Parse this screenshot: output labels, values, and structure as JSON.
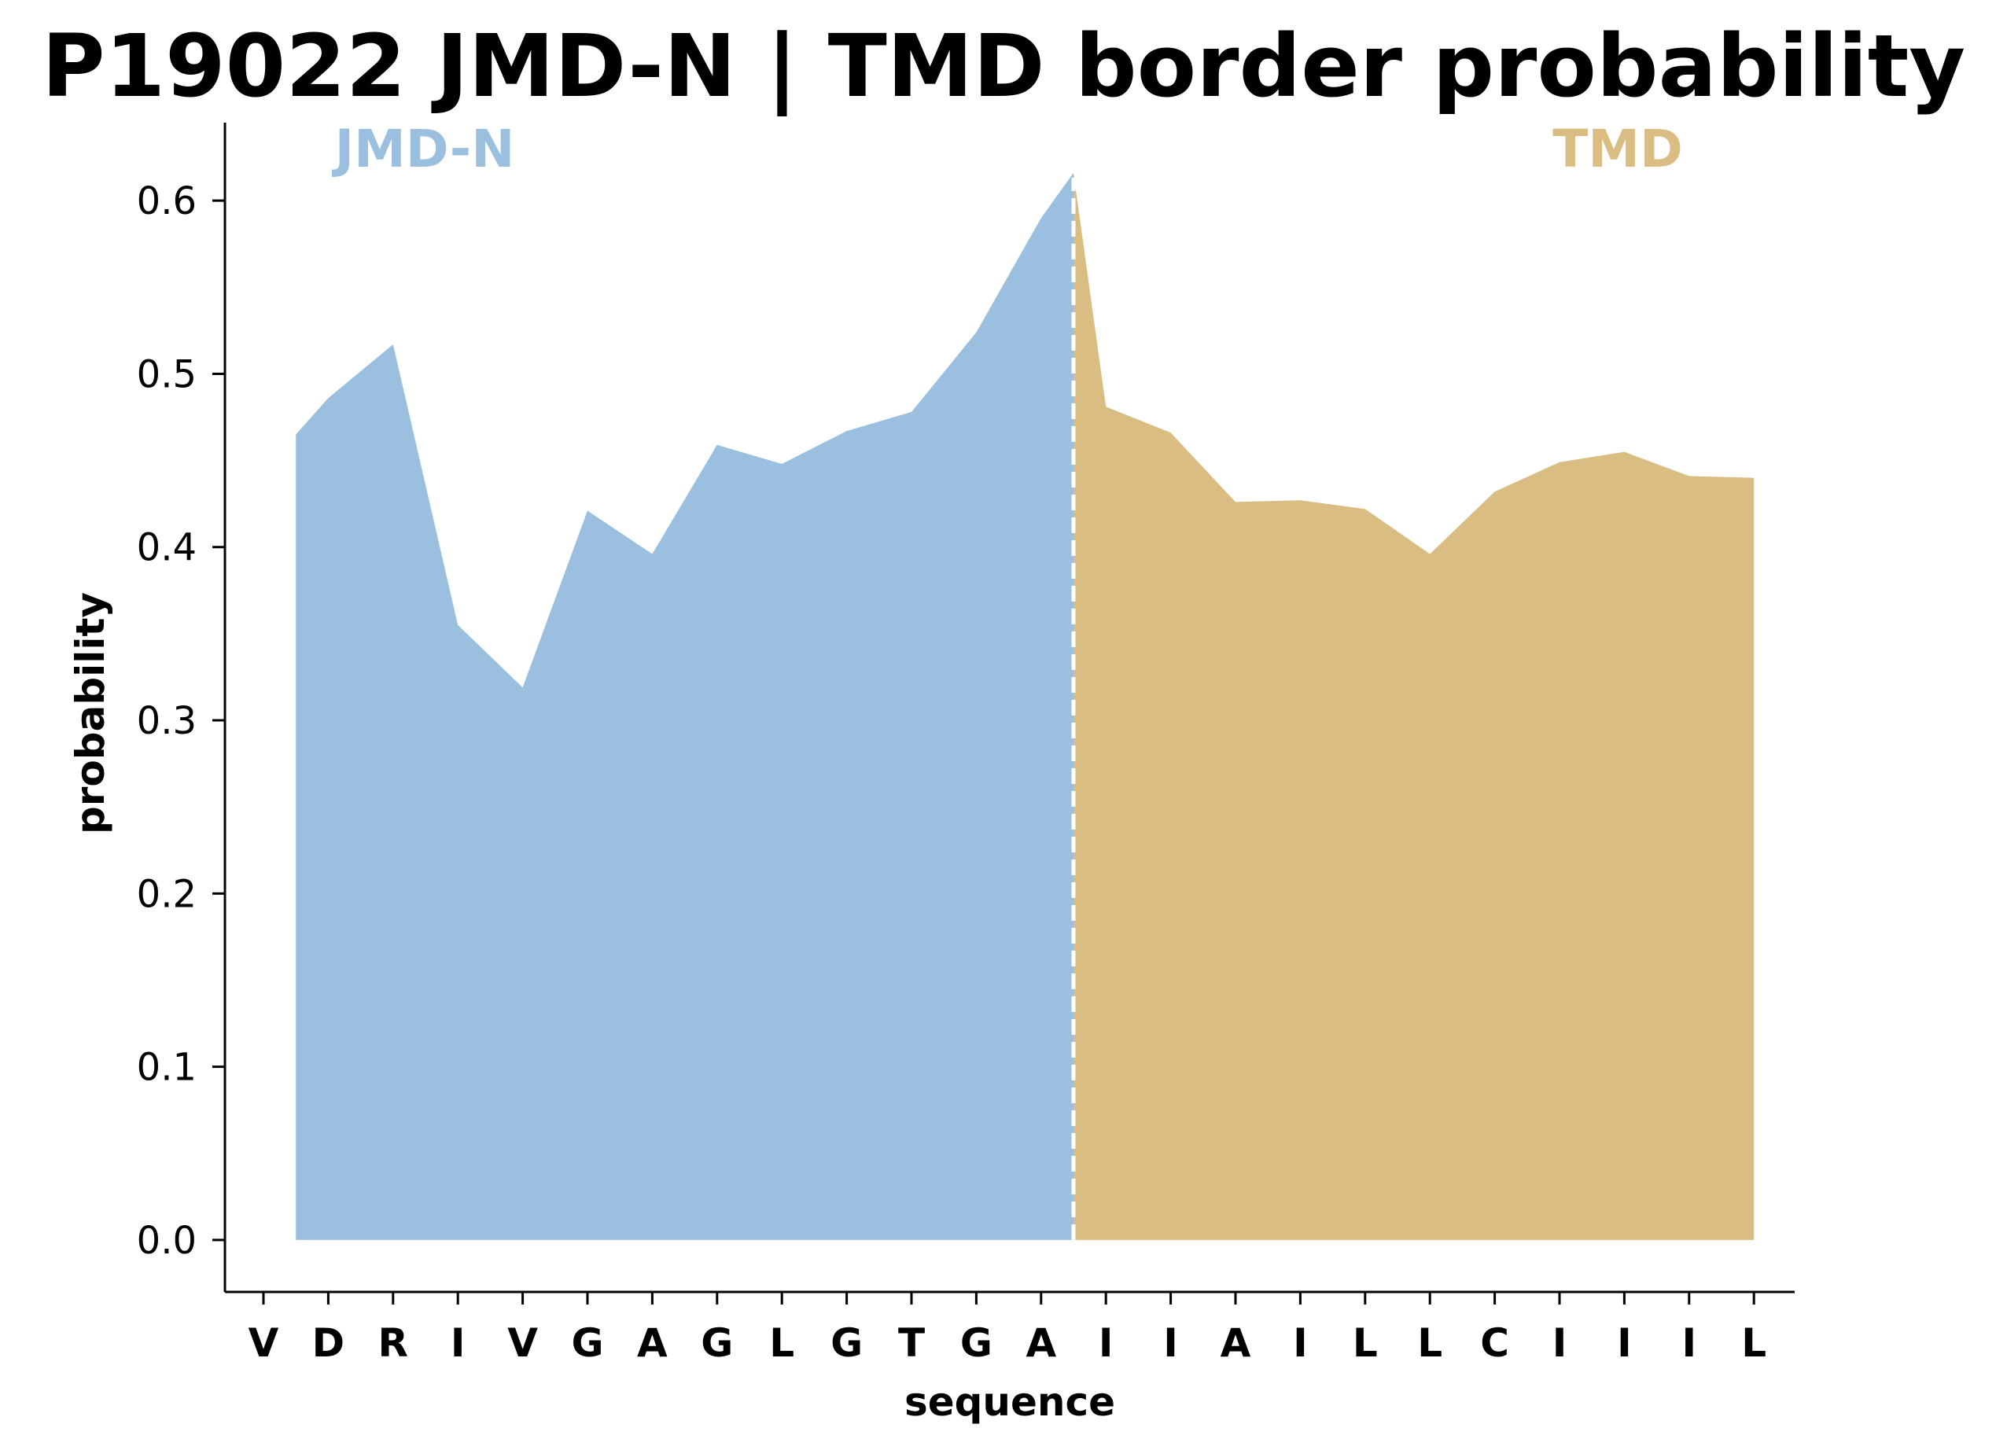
{
  "chart_data": {
    "type": "area",
    "title": "P19022 JMD-N | TMD border probability",
    "xlabel": "sequence",
    "ylabel": "probability",
    "ylim": [
      -0.03,
      0.645
    ],
    "yticks": [
      0.0,
      0.1,
      0.2,
      0.3,
      0.4,
      0.5,
      0.6
    ],
    "ytick_labels": [
      "0.0",
      "0.1",
      "0.2",
      "0.3",
      "0.4",
      "0.5",
      "0.6"
    ],
    "categories": [
      "V",
      "D",
      "R",
      "I",
      "V",
      "G",
      "A",
      "G",
      "L",
      "G",
      "T",
      "G",
      "A",
      "I",
      "I",
      "A",
      "I",
      "L",
      "L",
      "C",
      "I",
      "I",
      "I",
      "L"
    ],
    "border_position": 12.5,
    "grid": false,
    "series": [
      {
        "name": "JMD-N",
        "color": "#9bc0df",
        "x": [
          0.5,
          1,
          2,
          3,
          4,
          5,
          6,
          7,
          8,
          9,
          10,
          11,
          12,
          12.5
        ],
        "values": [
          0.465,
          0.486,
          0.517,
          0.355,
          0.319,
          0.421,
          0.396,
          0.459,
          0.448,
          0.467,
          0.478,
          0.524,
          0.59,
          0.616
        ]
      },
      {
        "name": "TMD",
        "color": "#d9bd83",
        "x": [
          12.5,
          13,
          14,
          15,
          16,
          17,
          18,
          19,
          20,
          21,
          22,
          23
        ],
        "values": [
          0.616,
          0.481,
          0.466,
          0.426,
          0.427,
          0.422,
          0.396,
          0.432,
          0.449,
          0.455,
          0.441,
          0.44
        ]
      }
    ],
    "region_labels": [
      {
        "text": "JMD-N",
        "color": "#9bc0df"
      },
      {
        "text": "TMD",
        "color": "#d9bd83"
      }
    ],
    "border_line_color": "#ffffff",
    "axis_color": "#000000"
  }
}
